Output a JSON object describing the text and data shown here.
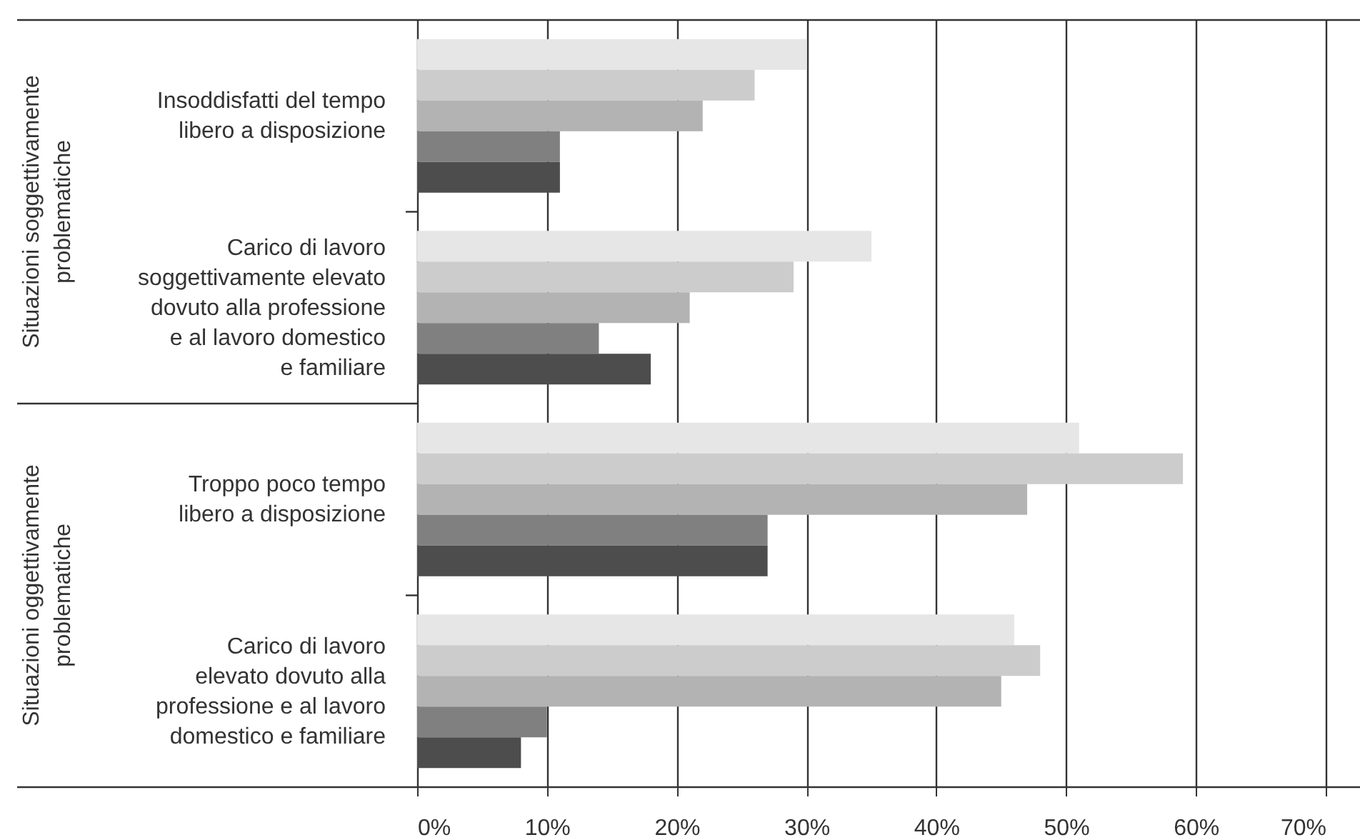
{
  "chart_data": {
    "type": "bar",
    "orientation": "horizontal",
    "categories": [
      "Insoddisfatti del tempo\nlibero a disposizione",
      "Carico di lavoro\nsoggettivamente elevato\ndovuto alla professione\ne al lavoro domestico\ne familiare",
      "Troppo poco tempo\nlibero a disposizione",
      "Carico di lavoro\nelevato dovuto alla\nprofessione e al lavoro\ndomestico e familiare"
    ],
    "series": [
      {
        "color": "#e6e6e6",
        "values": [
          30,
          35,
          51,
          46
        ]
      },
      {
        "color": "#cccccc",
        "values": [
          26,
          29,
          59,
          48
        ]
      },
      {
        "color": "#b3b3b3",
        "values": [
          22,
          21,
          47,
          45
        ]
      },
      {
        "color": "#808080",
        "values": [
          11,
          14,
          27,
          10
        ]
      },
      {
        "color": "#4d4d4d",
        "values": [
          11,
          18,
          27,
          8
        ]
      }
    ],
    "annotations": [
      "Situazioni soggettivamente\nproblematiche",
      "Situazioni oggettivamente\nproblematiche"
    ],
    "xlim": [
      0,
      70
    ],
    "xticks": [
      {
        "value": 0,
        "label": "0%"
      },
      {
        "value": 10,
        "label": "10%"
      },
      {
        "value": 20,
        "label": "20%"
      },
      {
        "value": 30,
        "label": "30%"
      },
      {
        "value": 40,
        "label": "40%"
      },
      {
        "value": 50,
        "label": "50%"
      },
      {
        "value": 60,
        "label": "60%"
      },
      {
        "value": 70,
        "label": "70%"
      }
    ],
    "grid": "x"
  }
}
